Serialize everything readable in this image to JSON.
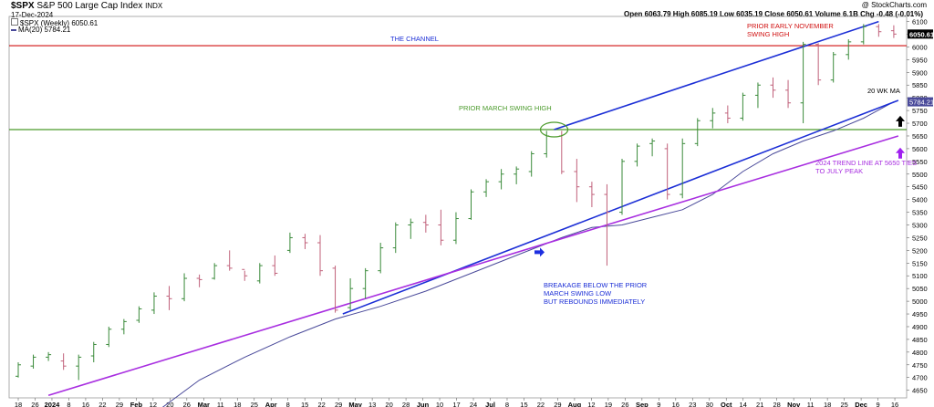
{
  "header": {
    "symbol": "$SPX",
    "name": "S&P 500 Large Cap Index",
    "exchange": "INDX",
    "date": "17-Dec-2024",
    "source": "@ StockCharts.com",
    "ohlc_line": "Open 6063.79  High 6085.19  Low 6035.19  Close 6050.61  Volume 6.1B  Chg -0.48 (-0.01%)",
    "legend_price": "$SPX (Weekly) 6050.61",
    "legend_ma": "MA(20) 5784.21",
    "close_tag": "6050.61",
    "ma_tag": "5784.21"
  },
  "colors": {
    "up": "#3a8a3a",
    "down": "#c0607a",
    "ma": "#4a4a9a",
    "channel": "#1c2fd6",
    "trend": "#a82ee0",
    "resistance": "#d01010",
    "support": "#4a9a2a",
    "blue_arrow": "#1d2fe0",
    "purple_arrow": "#a020f0"
  },
  "chart_data": {
    "type": "ohlc",
    "title": "$SPX S&P 500 Large Cap Index INDX",
    "frequency": "weekly",
    "ylim": [
      4620,
      6120
    ],
    "y_ticks": [
      4650,
      4700,
      4750,
      4800,
      4850,
      4900,
      4950,
      5000,
      5050,
      5100,
      5150,
      5200,
      5250,
      5300,
      5350,
      5400,
      5450,
      5500,
      5550,
      5600,
      5650,
      5700,
      5750,
      5800,
      5850,
      5900,
      5950,
      6000,
      6050,
      6100
    ],
    "x_ticks": [
      "18",
      "26",
      "2024",
      "8",
      "16",
      "22",
      "29",
      "Feb",
      "12",
      "20",
      "26",
      "Mar",
      "11",
      "18",
      "25",
      "Apr",
      "8",
      "15",
      "22",
      "29",
      "May",
      "13",
      "20",
      "28",
      "Jun",
      "10",
      "17",
      "24",
      "Jul",
      "8",
      "15",
      "22",
      "29",
      "Aug",
      "12",
      "19",
      "26",
      "Sep",
      "9",
      "16",
      "23",
      "30",
      "Oct",
      "14",
      "21",
      "28",
      "Nov",
      "11",
      "18",
      "25",
      "Dec",
      "9",
      "16"
    ],
    "candles": [
      [
        4705,
        4760,
        4700,
        4750
      ],
      [
        4745,
        4790,
        4735,
        4780
      ],
      [
        4780,
        4800,
        4765,
        4790
      ],
      [
        4765,
        4795,
        4730,
        4745
      ],
      [
        4745,
        4790,
        4690,
        4780
      ],
      [
        4785,
        4840,
        4760,
        4830
      ],
      [
        4830,
        4900,
        4820,
        4890
      ],
      [
        4890,
        4930,
        4870,
        4920
      ],
      [
        4925,
        4980,
        4915,
        4970
      ],
      [
        4965,
        5035,
        4950,
        5020
      ],
      [
        5020,
        5060,
        4965,
        5010
      ],
      [
        5010,
        5110,
        5000,
        5090
      ],
      [
        5090,
        5105,
        5055,
        5085
      ],
      [
        5090,
        5150,
        5085,
        5140
      ],
      [
        5140,
        5200,
        5120,
        5130
      ],
      [
        5125,
        5120,
        5080,
        5100
      ],
      [
        5080,
        5150,
        5070,
        5140
      ],
      [
        5140,
        5180,
        5100,
        5110
      ],
      [
        5200,
        5270,
        5190,
        5250
      ],
      [
        5250,
        5265,
        5205,
        5230
      ],
      [
        5230,
        5260,
        5100,
        5120
      ],
      [
        5130,
        5140,
        4955,
        4965
      ],
      [
        4975,
        5090,
        4965,
        5050
      ],
      [
        5050,
        5130,
        5010,
        5120
      ],
      [
        5120,
        5230,
        5110,
        5210
      ],
      [
        5210,
        5310,
        5190,
        5300
      ],
      [
        5300,
        5325,
        5245,
        5310
      ],
      [
        5310,
        5340,
        5270,
        5300
      ],
      [
        5300,
        5360,
        5220,
        5240
      ],
      [
        5240,
        5350,
        5225,
        5325
      ],
      [
        5325,
        5440,
        5320,
        5430
      ],
      [
        5430,
        5480,
        5410,
        5470
      ],
      [
        5470,
        5520,
        5440,
        5500
      ],
      [
        5500,
        5530,
        5460,
        5520
      ],
      [
        5510,
        5590,
        5490,
        5580
      ],
      [
        5580,
        5670,
        5565,
        5650
      ],
      [
        5650,
        5670,
        5500,
        5510
      ],
      [
        5510,
        5560,
        5390,
        5450
      ],
      [
        5450,
        5470,
        5370,
        5420
      ],
      [
        5420,
        5460,
        5140,
        5350
      ],
      [
        5350,
        5560,
        5340,
        5550
      ],
      [
        5550,
        5620,
        5530,
        5610
      ],
      [
        5620,
        5640,
        5570,
        5630
      ],
      [
        5600,
        5620,
        5400,
        5420
      ],
      [
        5420,
        5640,
        5405,
        5620
      ],
      [
        5620,
        5720,
        5610,
        5710
      ],
      [
        5710,
        5760,
        5680,
        5740
      ],
      [
        5740,
        5770,
        5700,
        5720
      ],
      [
        5720,
        5820,
        5710,
        5810
      ],
      [
        5810,
        5860,
        5760,
        5850
      ],
      [
        5850,
        5880,
        5800,
        5830
      ],
      [
        5830,
        5870,
        5760,
        5780
      ],
      [
        5780,
        6020,
        5700,
        6010
      ],
      [
        6010,
        6015,
        5850,
        5870
      ],
      [
        5870,
        5980,
        5860,
        5970
      ],
      [
        5970,
        6030,
        5950,
        6020
      ],
      [
        6020,
        6090,
        6010,
        6080
      ],
      [
        6080,
        6090,
        6040,
        6060
      ],
      [
        6063.79,
        6085.19,
        6035.19,
        6050.61
      ]
    ],
    "ma20": [
      [
        4630,
        null
      ],
      [
        4700,
        null
      ],
      [
        4750,
        null
      ],
      [
        4800,
        null
      ],
      [
        4850,
        null
      ],
      [
        4900,
        null
      ],
      [
        4950,
        null
      ]
    ],
    "ma20_points": [
      [
        9.5,
        4580
      ],
      [
        12,
        4690
      ],
      [
        15,
        4780
      ],
      [
        18,
        4860
      ],
      [
        21,
        4930
      ],
      [
        24,
        4980
      ],
      [
        27,
        5040
      ],
      [
        30,
        5110
      ],
      [
        33,
        5180
      ],
      [
        36,
        5250
      ],
      [
        38,
        5290
      ],
      [
        40,
        5300
      ],
      [
        42,
        5330
      ],
      [
        44,
        5360
      ],
      [
        46,
        5420
      ],
      [
        48,
        5510
      ],
      [
        50,
        5580
      ],
      [
        52,
        5630
      ],
      [
        54,
        5670
      ],
      [
        56,
        5720
      ],
      [
        58,
        5784.21
      ]
    ],
    "lines": [
      {
        "name": "channel_upper",
        "color": "channel",
        "from": [
          35.5,
          5675
        ],
        "to": [
          57,
          6100
        ]
      },
      {
        "name": "channel_lower",
        "color": "channel",
        "from": [
          21.5,
          4950
        ],
        "to": [
          58.3,
          5790
        ]
      },
      {
        "name": "trend_2024",
        "color": "trend",
        "from": [
          2,
          4630
        ],
        "to": [
          58.3,
          5650
        ]
      }
    ],
    "hlines": [
      {
        "name": "prior_early_november_swing_high",
        "value": 6005,
        "color": "resistance"
      },
      {
        "name": "prior_march_swing_high",
        "value": 5675,
        "color": "support"
      }
    ],
    "annotations": [
      {
        "text": "THE CHANNEL",
        "color": "channel"
      },
      {
        "text": "PRIOR EARLY NOVEMBER",
        "color": "resistance"
      },
      {
        "text": "SWING HIGH",
        "color": "resistance"
      },
      {
        "text": "PRIOR MARCH SWING HIGH",
        "color": "support"
      },
      {
        "text": "20 WK MA",
        "color": "text"
      },
      {
        "text": "BREAKAGE BELOW THE PRIOR",
        "color": "channel"
      },
      {
        "text": "MARCH SWING LOW",
        "color": "channel"
      },
      {
        "text": "BUT REBOUNDS IMMEDIATELY",
        "color": "channel"
      },
      {
        "text": "2024 TREND LINE AT 5650 TIES",
        "color": "trend"
      },
      {
        "text": "TO JULY PEAK",
        "color": "trend"
      }
    ]
  }
}
